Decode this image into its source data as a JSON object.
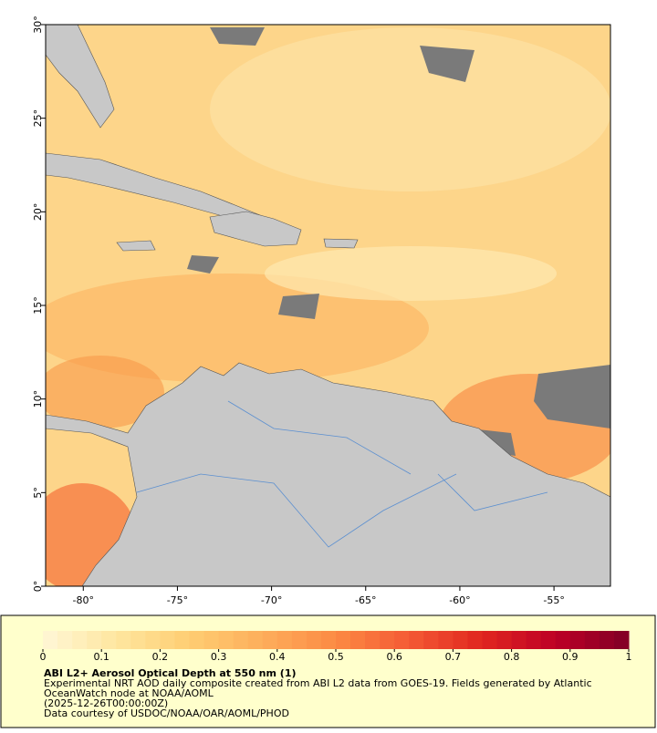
{
  "map": {
    "lonlim": [
      -82,
      -52
    ],
    "latlim": [
      0,
      30
    ],
    "lon_ticks": [
      {
        "value": -80,
        "label": "-80°"
      },
      {
        "value": -75,
        "label": "-75°"
      },
      {
        "value": -70,
        "label": "-70°"
      },
      {
        "value": -65,
        "label": "-65°"
      },
      {
        "value": -60,
        "label": "-60°"
      },
      {
        "value": -55,
        "label": "-55°"
      }
    ],
    "lat_ticks": [
      {
        "value": 0,
        "label": "0°"
      },
      {
        "value": 5,
        "label": "5°"
      },
      {
        "value": 10,
        "label": "10°"
      },
      {
        "value": 15,
        "label": "15°"
      },
      {
        "value": 20,
        "label": "20°"
      },
      {
        "value": 25,
        "label": "25°"
      },
      {
        "value": 30,
        "label": "30°"
      }
    ]
  },
  "colorbar": {
    "range": [
      0,
      1
    ],
    "steps": 40,
    "ticks": [
      0,
      0.1,
      0.2,
      0.3,
      0.4,
      0.5,
      0.6,
      0.7,
      0.8,
      0.9,
      1
    ],
    "colors": [
      "#fff7d6",
      "#fee6a0",
      "#fecd72",
      "#fdae5b",
      "#fc8a44",
      "#f45a34",
      "#e0261f",
      "#bd0026",
      "#800026"
    ]
  },
  "caption": {
    "title": "ABI L2+ Aerosol Optical Depth at 550 nm (1)",
    "lines": [
      "Experimental NRT AOD daily composite created from ABI L2 data from GOES-19. Fields generated by Atlantic",
      "OceanWatch node at NOAA/AOML",
      "(2025-12-26T00:00:00Z)",
      "Data courtesy of USDOC/NOAA/OAR/AOML/PHOD"
    ]
  }
}
